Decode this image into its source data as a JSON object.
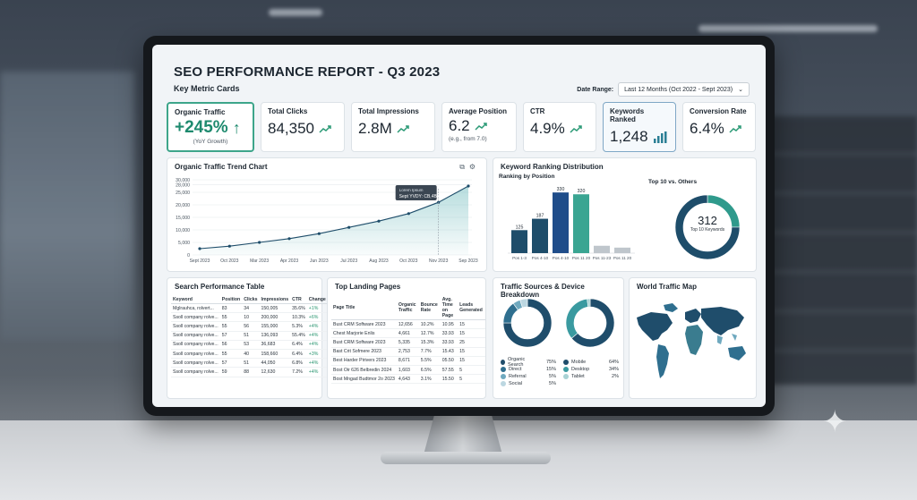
{
  "header": {
    "title": "SEO PERFORMANCE REPORT - Q3 2023",
    "section_label": "Key Metric Cards",
    "date_range_label": "Date Range:",
    "date_range_value": "Last 12 Months (Oct 2022 - Sept 2023)"
  },
  "kpis": {
    "organic": {
      "label": "Organic Traffic",
      "value": "+245%",
      "sub": "(YoY Growth)"
    },
    "clicks": {
      "label": "Total Clicks",
      "value": "84,350"
    },
    "impressions": {
      "label": "Total Impressions",
      "value": "2.8M"
    },
    "position": {
      "label": "Average Position",
      "value": "6.2",
      "sub": "(e.g., from 7.0)"
    },
    "ctr": {
      "label": "CTR",
      "value": "4.9%"
    },
    "keywords": {
      "label": "Keywords Ranked",
      "value": "1,248"
    },
    "conversion": {
      "label": "Conversion Rate",
      "value": "6.4%"
    }
  },
  "trend_chart": {
    "title": "Organic Traffic Trend Chart",
    "tooltip_line1": "Lorem Ipsum",
    "tooltip_line2": "Sept YVDY: CB,4Bh"
  },
  "ranking": {
    "title": "Keyword Ranking Distribution",
    "subtitle": "Ranking by Position",
    "donut_title": "Top 10 vs. Others",
    "donut_value": "312",
    "donut_label": "Top 10 Keywords"
  },
  "search_table": {
    "title": "Search Performance Table",
    "headers": [
      "Keyword",
      "Position",
      "Clicks",
      "Impressions",
      "CTR",
      "Change"
    ],
    "rows": [
      [
        "Mglrauhca, rolvert...",
        "83",
        "34",
        "150,005",
        "35.6%",
        "+1%"
      ],
      [
        "Ssoll company rolve...",
        "55",
        "10",
        "200,000",
        "10.3%",
        "+6%"
      ],
      [
        "Ssoll company rolve...",
        "55",
        "56",
        "155,000",
        "5.3%",
        "+4%"
      ],
      [
        "Ssoll company rolve...",
        "57",
        "51",
        "136,093",
        "55.4%",
        "+4%"
      ],
      [
        "Ssoll company rolve...",
        "56",
        "53",
        "36,683",
        "6.4%",
        "+4%"
      ],
      [
        "Ssoll company rolve...",
        "55",
        "40",
        "158,660",
        "6.4%",
        "+3%"
      ],
      [
        "Ssoll company rolve...",
        "57",
        "51",
        "44,050",
        "6.8%",
        "+4%"
      ],
      [
        "Ssoll company rolve...",
        "59",
        "88",
        "12,630",
        "7.2%",
        "+4%"
      ]
    ]
  },
  "landing_pages": {
    "title": "Top Landing Pages",
    "headers": [
      "Page Title",
      "Organic Traffic",
      "Bounce Rate",
      "Avg. Time on Page",
      "Leads Generated"
    ],
    "rows": [
      [
        "Bust CRM Software 2023",
        "12,656",
        "10.2%",
        "10.95",
        "15"
      ],
      [
        "Chest Marjorie Enlis",
        "4,661",
        "12.7%",
        "33.93",
        "15"
      ],
      [
        "Bust CRM Software 2023",
        "5,335",
        "15.3%",
        "33.93",
        "25"
      ],
      [
        "Bast Crit Sofmere 2023",
        "2,753",
        "7.7%",
        "15.43",
        "15"
      ],
      [
        "Best Harder Pirivers 2023",
        "8,671",
        "5.5%",
        "05.50",
        "15"
      ],
      [
        "Bost Oir 626 Belbredin 2024",
        "1,603",
        "6.5%",
        "57.55",
        "5"
      ],
      [
        "Bost Mngad Budtmor 2o 2023",
        "4,643",
        "3.1%",
        "15.50",
        "5"
      ]
    ]
  },
  "traffic_sources": {
    "title": "Traffic Sources & Device Breakdown",
    "sources": [
      {
        "name": "Organic Search",
        "value": "75%",
        "color": "#1f4d6b"
      },
      {
        "name": "Direct",
        "value": "15%",
        "color": "#2f6f8f"
      },
      {
        "name": "Referral",
        "value": "5%",
        "color": "#6fa9bf"
      },
      {
        "name": "Social",
        "value": "5%",
        "color": "#bcd7e1"
      }
    ],
    "devices": [
      {
        "name": "Mobile",
        "value": "64%",
        "color": "#1f4d6b"
      },
      {
        "name": "Desktop",
        "value": "34%",
        "color": "#3a9aa0"
      },
      {
        "name": "Tablet",
        "value": "2%",
        "color": "#a8d2d4"
      }
    ]
  },
  "world_map": {
    "title": "World Traffic Map"
  },
  "chart_data": [
    {
      "type": "line",
      "title": "Organic Traffic Trend Chart",
      "x": [
        "Sept 2023",
        "Oct 2023",
        "Mar 2023",
        "Apr 2023",
        "Jun 2023",
        "Jul 2023",
        "Aug 2023",
        "Oct 2023",
        "Nov 2023",
        "Sep 2023"
      ],
      "y_ticks": [
        "0",
        "5,000",
        "10,000",
        "15,000",
        "20,000",
        "25,000",
        "28,000",
        "30,000"
      ],
      "series": [
        {
          "values": [
            2500,
            3500,
            5000,
            6500,
            8500,
            11000,
            13500,
            16500,
            21000,
            27500
          ]
        }
      ],
      "ylim": [
        0,
        30000
      ]
    },
    {
      "type": "bar",
      "title": "Ranking by Position",
      "categories": [
        "Pos 1-3",
        "Pos 4-10",
        "Pos 4-10",
        "Pos 11 20",
        "Pos 11-23",
        "Pos 11 20"
      ],
      "values": [
        125,
        187,
        330,
        320,
        40,
        30
      ],
      "labels": [
        "125",
        "187",
        "330",
        "320",
        "",
        ""
      ],
      "colors": [
        "#1e4d6a",
        "#1e4d6a",
        "#1f4d8a",
        "#3aa592",
        "#bfc6cc",
        "#bfc6cc"
      ],
      "ylim": [
        0,
        360
      ]
    },
    {
      "type": "pie",
      "title": "Top 10 vs. Others",
      "values": [
        312,
        936
      ],
      "colors": [
        "#2f9a8c",
        "#1e4d6a"
      ]
    }
  ]
}
